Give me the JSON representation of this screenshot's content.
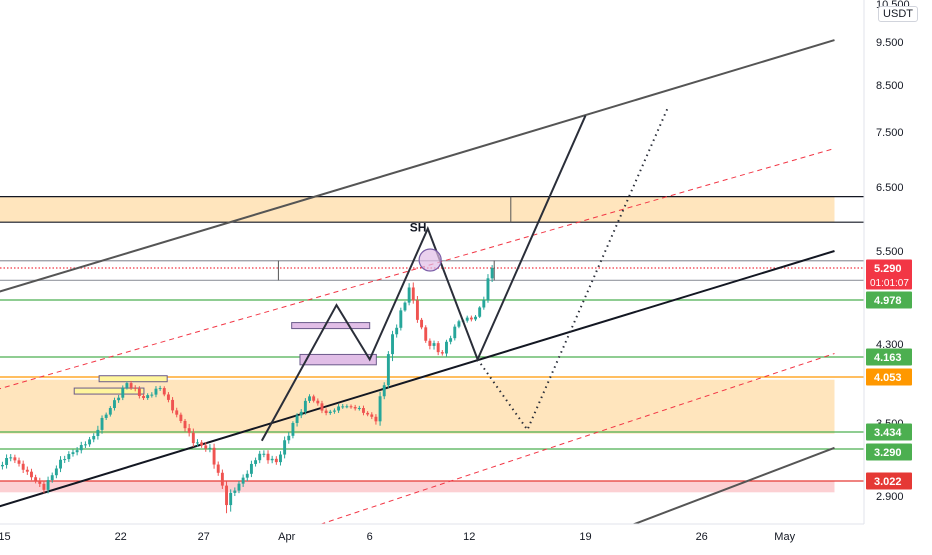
{
  "chart_data": {
    "type": "candlestick",
    "quote_currency": "USDT",
    "x_axis": {
      "ticks": [
        {
          "label": "15",
          "day": 0
        },
        {
          "label": "22",
          "day": 7
        },
        {
          "label": "27",
          "day": 12
        },
        {
          "label": "Apr",
          "day": 17
        },
        {
          "label": "6",
          "day": 22
        },
        {
          "label": "12",
          "day": 28
        },
        {
          "label": "19",
          "day": 35
        },
        {
          "label": "26",
          "day": 42
        },
        {
          "label": "May",
          "day": 47
        }
      ],
      "range_days": [
        -0.5,
        50
      ]
    },
    "y_axis": {
      "ticks": [
        "10.500",
        "9.500",
        "8.500",
        "7.500",
        "6.500",
        "5.500",
        "4.300",
        "3.500",
        "2.900"
      ],
      "tick_values": [
        10.5,
        9.5,
        8.5,
        7.5,
        6.5,
        5.5,
        4.3,
        3.5,
        2.9
      ]
    },
    "price_labels": [
      {
        "label": "5.290",
        "value": 5.29,
        "color": "#f23645",
        "time": "01:01:07"
      },
      {
        "label": "4.978",
        "value": 4.978,
        "color": "#4caf50"
      },
      {
        "label": "4.163",
        "value": 4.163,
        "color": "#4caf50"
      },
      {
        "label": "4.053",
        "value": 4.053,
        "color": "#ff9800"
      },
      {
        "label": "3.434",
        "value": 3.434,
        "color": "#4caf50"
      },
      {
        "label": "3.290",
        "value": 3.29,
        "color": "#4caf50"
      },
      {
        "label": "3.022",
        "value": 3.022,
        "color": "#e53935"
      }
    ],
    "zones": [
      {
        "name": "upper-supply-zone",
        "low": 5.95,
        "high": 6.35,
        "from_day": -0.5,
        "to_day": 50,
        "color": "#ffe0b2"
      },
      {
        "name": "lower-demand-zone",
        "low": 3.42,
        "high": 4.02,
        "from_day": -0.5,
        "to_day": 50,
        "color": "#ffe0b2"
      },
      {
        "name": "red-zone",
        "low": 2.93,
        "high": 3.02,
        "from_day": -0.5,
        "to_day": 50,
        "color": "#fbc8cb"
      }
    ],
    "horizontal_levels": [
      {
        "value": 5.95,
        "color": "#131722",
        "style": "solid",
        "from_day": -0.5
      },
      {
        "value": 6.35,
        "color": "#131722",
        "style": "solid",
        "from_day": -0.5
      },
      {
        "value": 5.29,
        "color": "#f23645",
        "style": "dotted",
        "from_day": -0.5
      },
      {
        "value": 5.38,
        "color": "#9598a1",
        "style": "solid",
        "from_day": -0.5
      },
      {
        "value": 5.17,
        "color": "#9598a1",
        "style": "solid",
        "from_day": -0.5
      },
      {
        "value": 4.978,
        "color": "#4caf50",
        "style": "solid",
        "from_day": -0.5
      },
      {
        "value": 4.163,
        "color": "#4caf50",
        "style": "solid",
        "from_day": -0.5
      },
      {
        "value": 4.053,
        "color": "#ff9800",
        "style": "solid",
        "from_day": -0.5
      },
      {
        "value": 3.434,
        "color": "#4caf50",
        "style": "solid",
        "from_day": -0.5
      },
      {
        "value": 3.29,
        "color": "#4caf50",
        "style": "solid",
        "from_day": -0.5
      },
      {
        "value": 3.022,
        "color": "#e53935",
        "style": "solid",
        "from_day": -0.5
      }
    ],
    "trend_lines": [
      {
        "name": "channel-top",
        "from": [
          -0.5,
          5.05
        ],
        "to": [
          50,
          9.55
        ],
        "color": "#555555",
        "width": 2,
        "style": "solid"
      },
      {
        "name": "channel-bottom",
        "from": [
          -0.5,
          2.85
        ],
        "to": [
          50,
          5.5
        ],
        "color": "#131722",
        "width": 2,
        "style": "solid"
      },
      {
        "name": "channel-lower-ext",
        "from": [
          37,
          2.75
        ],
        "to": [
          50,
          3.3
        ],
        "color": "#555555",
        "width": 2,
        "style": "solid"
      },
      {
        "name": "mid-channel-upper",
        "from": [
          -0.5,
          3.9
        ],
        "to": [
          50,
          7.2
        ],
        "color": "#f23645",
        "width": 1,
        "style": "dashed"
      },
      {
        "name": "mid-channel-lower",
        "from": [
          18,
          2.75
        ],
        "to": [
          50,
          4.2
        ],
        "color": "#f23645",
        "width": 1,
        "style": "dashed"
      }
    ],
    "projection_path": [
      [
        15.5,
        3.36
      ],
      [
        20,
        4.9
      ],
      [
        22,
        4.15
      ],
      [
        25.5,
        5.85
      ],
      [
        28.5,
        4.15
      ],
      [
        35,
        7.85
      ]
    ],
    "alt_projection": [
      [
        28.5,
        4.15
      ],
      [
        31.5,
        3.45
      ],
      [
        40,
        8.05
      ]
    ],
    "swing_high": {
      "label": "SH",
      "day": 25.4,
      "value": 5.43
    },
    "highlight_rects": [
      {
        "from_day": 4.2,
        "to_day": 8.4,
        "low": 3.86,
        "high": 3.92,
        "color": "#fff59d"
      },
      {
        "from_day": 5.7,
        "to_day": 9.8,
        "low": 4.01,
        "high": 4.06,
        "color": "#fff59d"
      },
      {
        "from_day": 17.3,
        "to_day": 22.0,
        "low": 4.55,
        "high": 4.63,
        "color": "#e1bee7"
      },
      {
        "from_day": 17.8,
        "to_day": 22.4,
        "low": 4.12,
        "high": 4.19,
        "color": "#e1bee7"
      }
    ],
    "candles": [
      {
        "o": 3.12,
        "h": 3.28,
        "l": 2.95,
        "c": 3.22
      },
      {
        "o": 3.22,
        "h": 3.3,
        "l": 3.05,
        "c": 3.1
      },
      {
        "o": 3.1,
        "h": 3.15,
        "l": 2.9,
        "c": 2.95
      },
      {
        "o": 2.95,
        "h": 3.25,
        "l": 2.9,
        "c": 3.2
      },
      {
        "o": 3.2,
        "h": 3.35,
        "l": 3.1,
        "c": 3.28
      },
      {
        "o": 3.28,
        "h": 3.45,
        "l": 3.22,
        "c": 3.4
      },
      {
        "o": 3.4,
        "h": 3.72,
        "l": 3.35,
        "c": 3.68
      },
      {
        "o": 3.68,
        "h": 4.05,
        "l": 3.62,
        "c": 3.98
      },
      {
        "o": 3.98,
        "h": 4.1,
        "l": 3.72,
        "c": 3.8
      },
      {
        "o": 3.8,
        "h": 3.98,
        "l": 3.6,
        "c": 3.92
      },
      {
        "o": 3.92,
        "h": 4.0,
        "l": 3.52,
        "c": 3.6
      },
      {
        "o": 3.6,
        "h": 3.7,
        "l": 3.28,
        "c": 3.34
      },
      {
        "o": 3.34,
        "h": 3.48,
        "l": 3.1,
        "c": 3.3
      },
      {
        "o": 3.3,
        "h": 3.35,
        "l": 2.78,
        "c": 2.86
      },
      {
        "o": 2.86,
        "h": 3.12,
        "l": 2.82,
        "c": 3.05
      },
      {
        "o": 3.05,
        "h": 3.3,
        "l": 3.0,
        "c": 3.25
      },
      {
        "o": 3.25,
        "h": 3.45,
        "l": 3.12,
        "c": 3.18
      },
      {
        "o": 3.18,
        "h": 3.55,
        "l": 3.15,
        "c": 3.5
      },
      {
        "o": 3.5,
        "h": 3.92,
        "l": 3.45,
        "c": 3.82
      },
      {
        "o": 3.82,
        "h": 3.9,
        "l": 3.55,
        "c": 3.62
      },
      {
        "o": 3.62,
        "h": 3.9,
        "l": 3.58,
        "c": 3.7
      },
      {
        "o": 3.7,
        "h": 3.82,
        "l": 3.62,
        "c": 3.68
      },
      {
        "o": 3.68,
        "h": 3.8,
        "l": 3.4,
        "c": 3.52
      },
      {
        "o": 3.52,
        "h": 4.72,
        "l": 3.48,
        "c": 4.45
      },
      {
        "o": 4.45,
        "h": 5.35,
        "l": 4.3,
        "c": 5.1
      },
      {
        "o": 5.1,
        "h": 5.2,
        "l": 4.2,
        "c": 4.35
      },
      {
        "o": 4.35,
        "h": 4.55,
        "l": 3.9,
        "c": 4.2
      },
      {
        "o": 4.2,
        "h": 4.75,
        "l": 4.15,
        "c": 4.65
      },
      {
        "o": 4.65,
        "h": 4.85,
        "l": 4.45,
        "c": 4.72
      },
      {
        "o": 4.72,
        "h": 5.38,
        "l": 4.68,
        "c": 5.29
      }
    ]
  }
}
